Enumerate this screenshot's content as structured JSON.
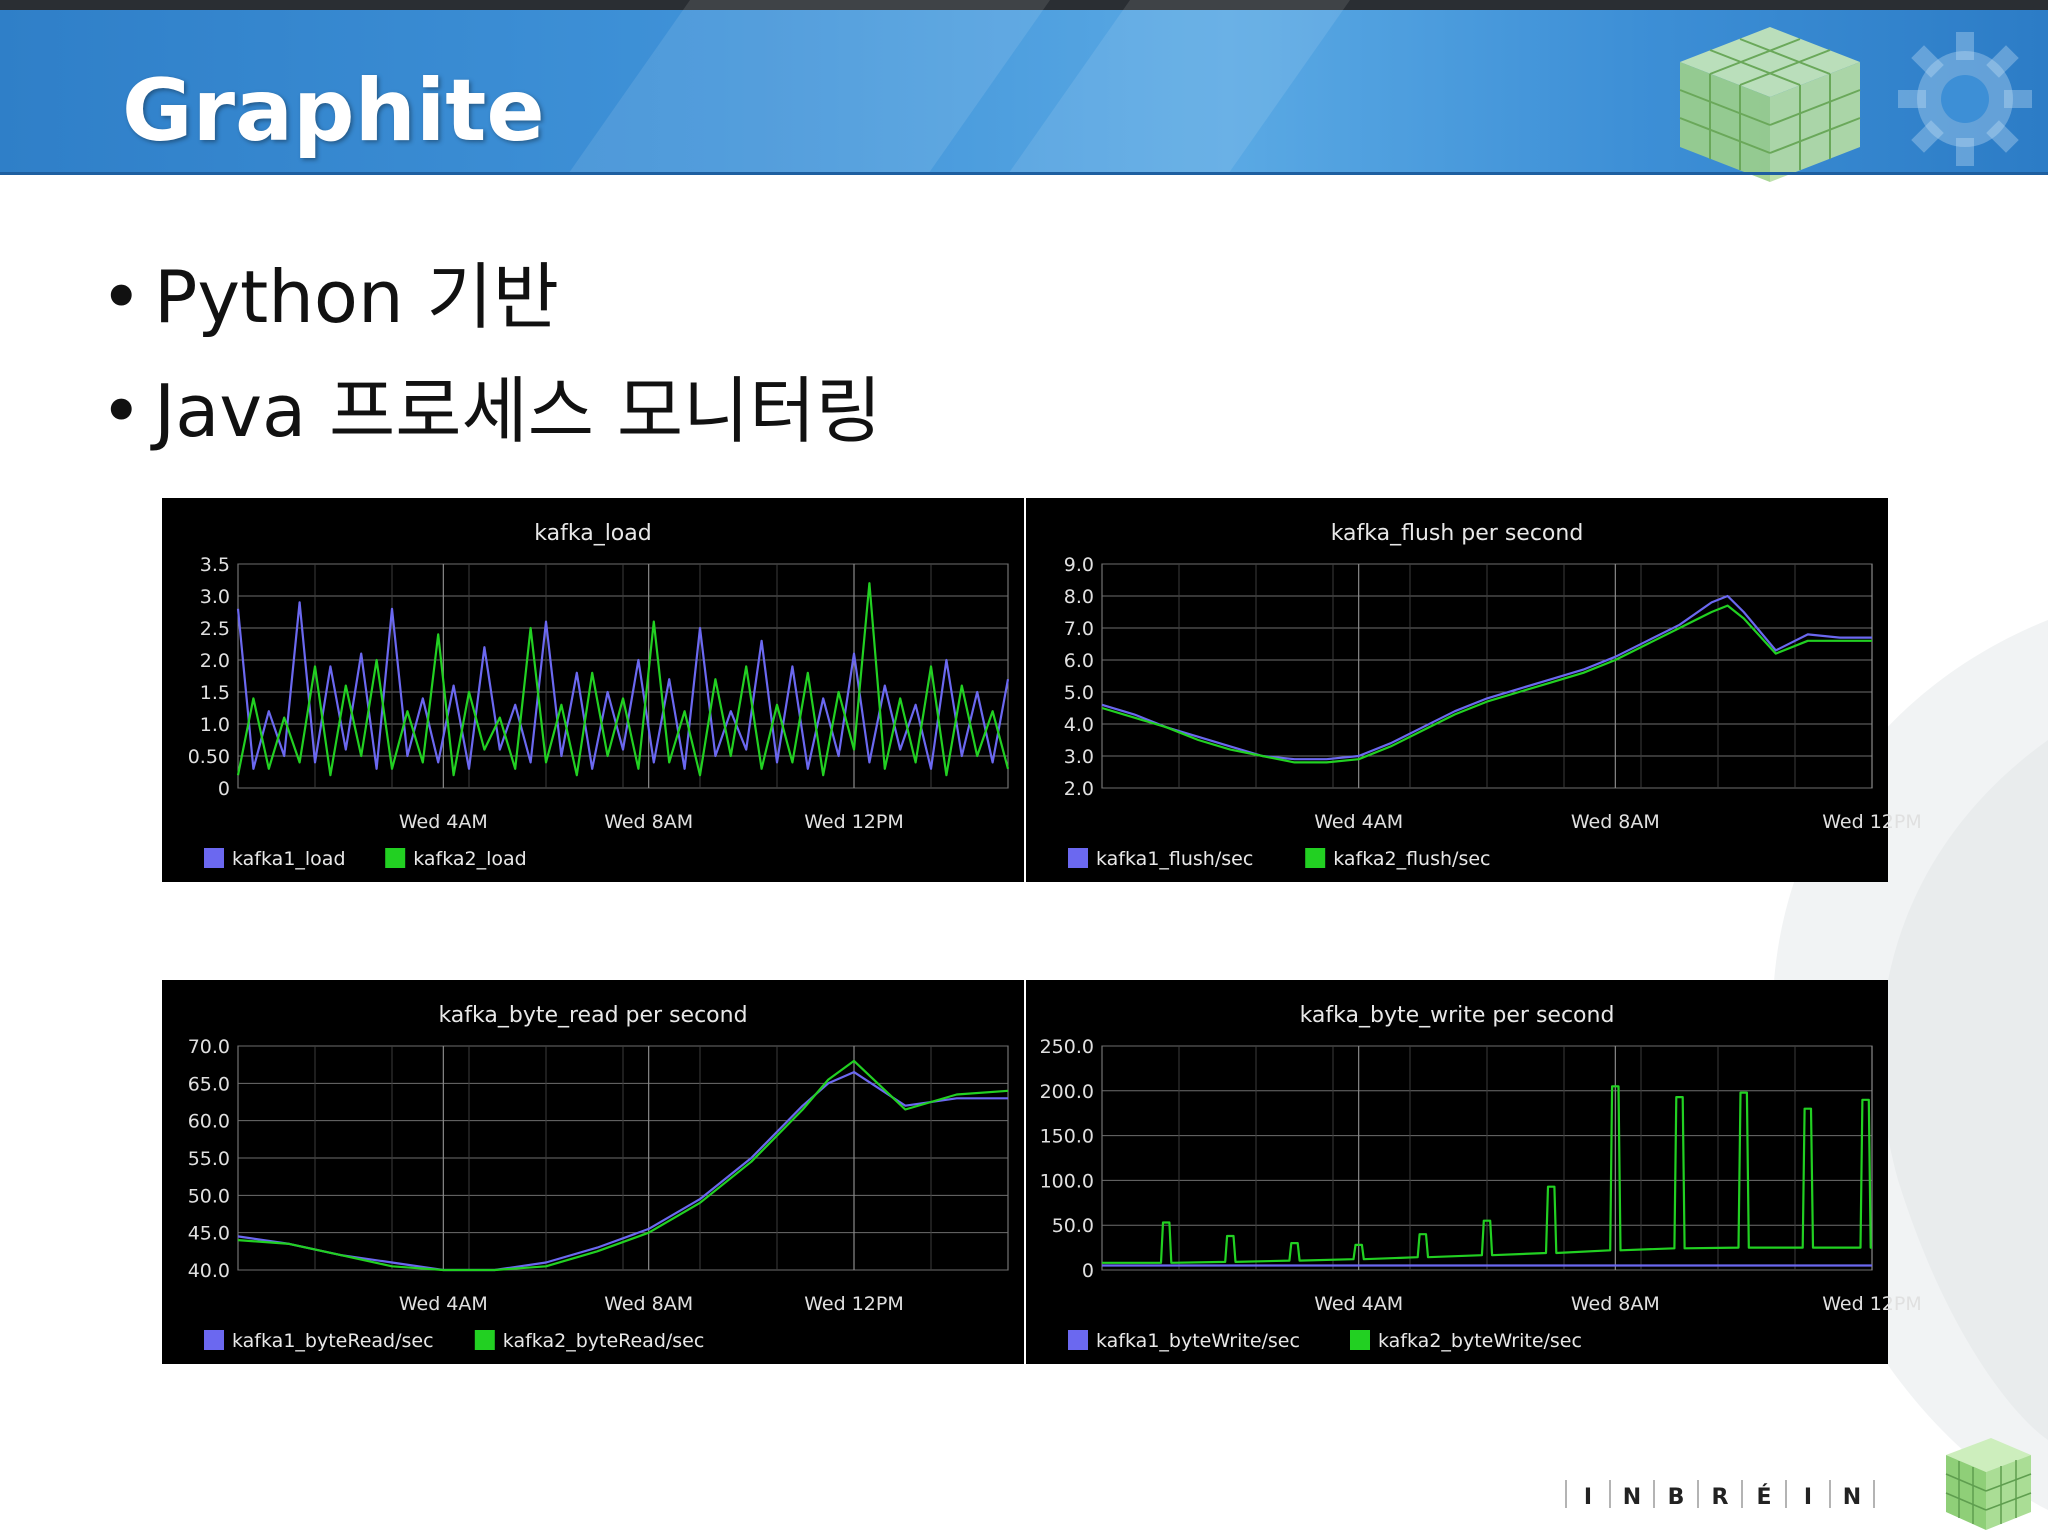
{
  "slide": {
    "title": "Graphite",
    "bullets": [
      "Python 기반",
      "Java 프로세스 모니터링"
    ],
    "footer_brand": [
      "I",
      "N",
      "B",
      "R",
      "É",
      "I",
      "N"
    ]
  },
  "colors": {
    "header": "#3a8dd6",
    "series_1": "#6b68f0",
    "series_2": "#22d022",
    "panel_bg": "#000000",
    "grid": "#808080"
  },
  "chart_data": [
    {
      "type": "line",
      "title": "kafka_load",
      "x_ticks": [
        "Wed 4AM",
        "Wed 8AM",
        "Wed 12PM"
      ],
      "x_tick_hours": [
        4,
        8,
        12
      ],
      "x_range_hours": [
        0,
        15
      ],
      "ylim": [
        0,
        3.5
      ],
      "y_ticks": [
        0,
        0.5,
        1.0,
        1.5,
        2.0,
        2.5,
        3.0,
        3.5
      ],
      "y_tick_labels": [
        "0",
        "0.50",
        "1.0",
        "1.5",
        "2.0",
        "2.5",
        "3.0",
        "3.5"
      ],
      "grid": true,
      "legend": "bottom-left",
      "series": [
        {
          "name": "kafka1_load",
          "color": "#6b68f0",
          "x": [
            0,
            0.3,
            0.6,
            0.9,
            1.2,
            1.5,
            1.8,
            2.1,
            2.4,
            2.7,
            3.0,
            3.3,
            3.6,
            3.9,
            4.2,
            4.5,
            4.8,
            5.1,
            5.4,
            5.7,
            6.0,
            6.3,
            6.6,
            6.9,
            7.2,
            7.5,
            7.8,
            8.1,
            8.4,
            8.7,
            9.0,
            9.3,
            9.6,
            9.9,
            10.2,
            10.5,
            10.8,
            11.1,
            11.4,
            11.7,
            12.0,
            12.3,
            12.6,
            12.9,
            13.2,
            13.5,
            13.8,
            14.1,
            14.4,
            14.7,
            15.0
          ],
          "y": [
            2.8,
            0.3,
            1.2,
            0.5,
            2.9,
            0.4,
            1.9,
            0.6,
            2.1,
            0.3,
            2.8,
            0.5,
            1.4,
            0.4,
            1.6,
            0.3,
            2.2,
            0.6,
            1.3,
            0.4,
            2.6,
            0.5,
            1.8,
            0.3,
            1.5,
            0.6,
            2.0,
            0.4,
            1.7,
            0.3,
            2.5,
            0.5,
            1.2,
            0.6,
            2.3,
            0.4,
            1.9,
            0.3,
            1.4,
            0.5,
            2.1,
            0.4,
            1.6,
            0.6,
            1.3,
            0.3,
            2.0,
            0.5,
            1.5,
            0.4,
            1.7
          ]
        },
        {
          "name": "kafka2_load",
          "color": "#22d022",
          "x": [
            0,
            0.3,
            0.6,
            0.9,
            1.2,
            1.5,
            1.8,
            2.1,
            2.4,
            2.7,
            3.0,
            3.3,
            3.6,
            3.9,
            4.2,
            4.5,
            4.8,
            5.1,
            5.4,
            5.7,
            6.0,
            6.3,
            6.6,
            6.9,
            7.2,
            7.5,
            7.8,
            8.1,
            8.4,
            8.7,
            9.0,
            9.3,
            9.6,
            9.9,
            10.2,
            10.5,
            10.8,
            11.1,
            11.4,
            11.7,
            12.0,
            12.3,
            12.6,
            12.9,
            13.2,
            13.5,
            13.8,
            14.1,
            14.4,
            14.7,
            15.0
          ],
          "y": [
            0.2,
            1.4,
            0.3,
            1.1,
            0.4,
            1.9,
            0.2,
            1.6,
            0.5,
            2.0,
            0.3,
            1.2,
            0.4,
            2.4,
            0.2,
            1.5,
            0.6,
            1.1,
            0.3,
            2.5,
            0.4,
            1.3,
            0.2,
            1.8,
            0.5,
            1.4,
            0.3,
            2.6,
            0.4,
            1.2,
            0.2,
            1.7,
            0.5,
            1.9,
            0.3,
            1.3,
            0.4,
            1.8,
            0.2,
            1.5,
            0.6,
            3.2,
            0.3,
            1.4,
            0.4,
            1.9,
            0.2,
            1.6,
            0.5,
            1.2,
            0.3
          ]
        }
      ]
    },
    {
      "type": "line",
      "title": "kafka_flush per second",
      "x_ticks": [
        "Wed 4AM",
        "Wed 8AM",
        "Wed 12PM"
      ],
      "x_tick_hours": [
        4,
        8,
        12
      ],
      "x_range_hours": [
        0,
        12.0
      ],
      "ylim": [
        2.0,
        9.0
      ],
      "y_ticks": [
        2.0,
        3.0,
        4.0,
        5.0,
        6.0,
        7.0,
        8.0,
        9.0
      ],
      "y_tick_labels": [
        "2.0",
        "3.0",
        "4.0",
        "5.0",
        "6.0",
        "7.0",
        "8.0",
        "9.0"
      ],
      "grid": true,
      "legend": "bottom-left",
      "series": [
        {
          "name": "kafka1_flush/sec",
          "color": "#6b68f0",
          "x": [
            0,
            0.5,
            1.0,
            1.5,
            2.0,
            2.5,
            3.0,
            3.5,
            4.0,
            4.5,
            5.0,
            5.5,
            6.0,
            6.5,
            7.0,
            7.5,
            8.0,
            8.5,
            9.0,
            9.5,
            9.75,
            10.0,
            10.5,
            11.0,
            11.5,
            12.0
          ],
          "y": [
            4.6,
            4.3,
            3.9,
            3.6,
            3.3,
            3.0,
            2.9,
            2.9,
            3.0,
            3.4,
            3.9,
            4.4,
            4.8,
            5.1,
            5.4,
            5.7,
            6.1,
            6.6,
            7.1,
            7.8,
            8.0,
            7.5,
            6.3,
            6.8,
            6.7,
            6.7
          ]
        },
        {
          "name": "kafka2_flush/sec",
          "color": "#22d022",
          "x": [
            0,
            0.5,
            1.0,
            1.5,
            2.0,
            2.5,
            3.0,
            3.5,
            4.0,
            4.5,
            5.0,
            5.5,
            6.0,
            6.5,
            7.0,
            7.5,
            8.0,
            8.5,
            9.0,
            9.5,
            9.75,
            10.0,
            10.5,
            11.0,
            11.5,
            12.0
          ],
          "y": [
            4.5,
            4.2,
            3.9,
            3.5,
            3.2,
            3.0,
            2.8,
            2.8,
            2.9,
            3.3,
            3.8,
            4.3,
            4.7,
            5.0,
            5.3,
            5.6,
            6.0,
            6.5,
            7.0,
            7.5,
            7.7,
            7.3,
            6.2,
            6.6,
            6.6,
            6.6
          ]
        }
      ]
    },
    {
      "type": "line",
      "title": "kafka_byte_read per second",
      "x_ticks": [
        "Wed 4AM",
        "Wed 8AM",
        "Wed 12PM"
      ],
      "x_tick_hours": [
        4,
        8,
        12
      ],
      "x_range_hours": [
        0,
        15
      ],
      "ylim": [
        40.0,
        70.0
      ],
      "y_ticks": [
        40.0,
        45.0,
        50.0,
        55.0,
        60.0,
        65.0,
        70.0
      ],
      "y_tick_labels": [
        "40.0",
        "45.0",
        "50.0",
        "55.0",
        "60.0",
        "65.0",
        "70.0"
      ],
      "grid": true,
      "legend": "bottom-left",
      "series": [
        {
          "name": "kafka1_byteRead/sec",
          "color": "#6b68f0",
          "x": [
            0,
            1,
            2,
            3,
            4,
            5,
            6,
            7,
            8,
            9,
            10,
            11,
            11.5,
            12,
            13,
            14,
            15
          ],
          "y": [
            44.5,
            43.5,
            42.0,
            41.0,
            40.0,
            40.0,
            41.0,
            43.0,
            45.5,
            49.5,
            55.0,
            62.0,
            65.0,
            66.5,
            62.0,
            63.0,
            63.0
          ]
        },
        {
          "name": "kafka2_byteRead/sec",
          "color": "#22d022",
          "x": [
            0,
            1,
            2,
            3,
            4,
            5,
            6,
            7,
            8,
            9,
            10,
            11,
            11.5,
            12,
            13,
            14,
            15
          ],
          "y": [
            44.0,
            43.5,
            42.0,
            40.5,
            40.0,
            40.0,
            40.5,
            42.5,
            45.0,
            49.0,
            54.5,
            61.5,
            65.5,
            68.0,
            61.5,
            63.5,
            64.0
          ]
        }
      ]
    },
    {
      "type": "line",
      "title": "kafka_byte_write per second",
      "x_ticks": [
        "Wed 4AM",
        "Wed 8AM",
        "Wed 12PM"
      ],
      "x_tick_hours": [
        4,
        8,
        12
      ],
      "x_range_hours": [
        0,
        12.0
      ],
      "ylim": [
        0,
        250.0
      ],
      "y_ticks": [
        0,
        50.0,
        100.0,
        150.0,
        200.0,
        250.0
      ],
      "y_tick_labels": [
        "0",
        "50.0",
        "100.0",
        "150.0",
        "200.0",
        "250.0"
      ],
      "grid": true,
      "legend": "bottom-left",
      "series": [
        {
          "name": "kafka1_byteWrite/sec",
          "color": "#6b68f0",
          "x": [
            0,
            12.0
          ],
          "y": [
            5,
            5
          ]
        },
        {
          "name": "kafka2_byteWrite/sec",
          "color": "#22d022",
          "spike_base": [
            8,
            8,
            10,
            12,
            15,
            18,
            22,
            25,
            25,
            25
          ],
          "spikes": [
            {
              "x": 1.0,
              "y": 53
            },
            {
              "x": 2.0,
              "y": 38
            },
            {
              "x": 3.0,
              "y": 30
            },
            {
              "x": 4.0,
              "y": 28
            },
            {
              "x": 5.0,
              "y": 40
            },
            {
              "x": 6.0,
              "y": 55
            },
            {
              "x": 7.0,
              "y": 93
            },
            {
              "x": 8.0,
              "y": 205
            },
            {
              "x": 9.0,
              "y": 193
            },
            {
              "x": 10.0,
              "y": 198
            },
            {
              "x": 11.0,
              "y": 180
            },
            {
              "x": 11.9,
              "y": 190
            }
          ]
        }
      ]
    }
  ]
}
